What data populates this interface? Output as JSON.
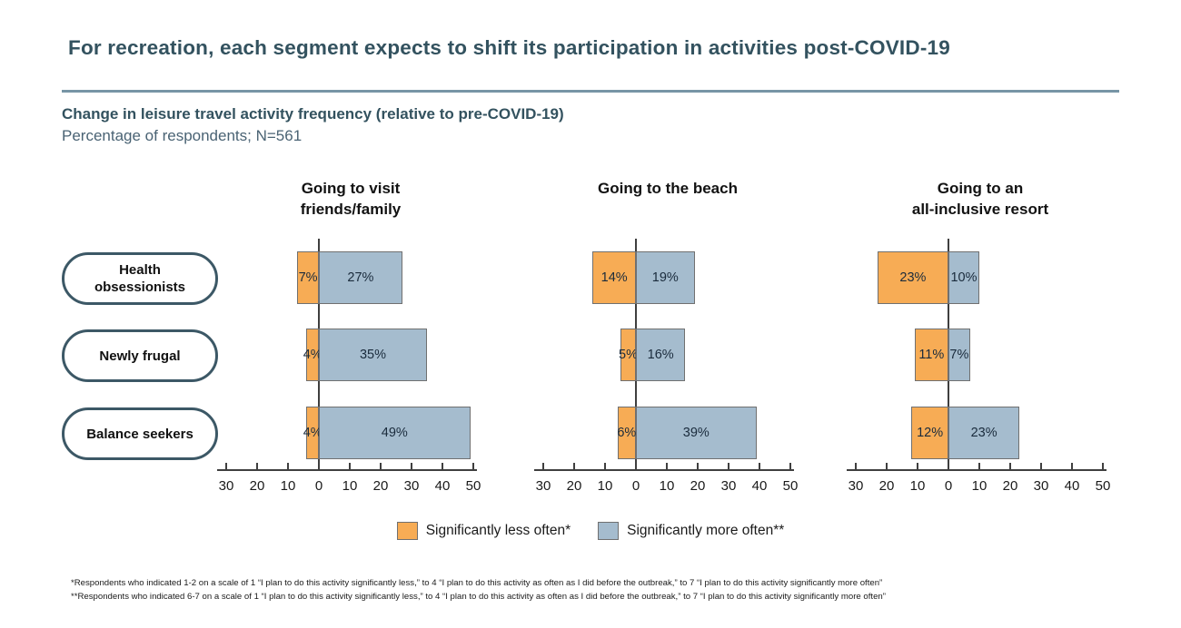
{
  "title": "For recreation, each segment expects to shift its participation in activities post-COVID-19",
  "subtitle": "Change in leisure travel activity frequency (relative to pre-COVID-19)",
  "subtitle2": "Percentage of respondents; N=561",
  "segments": [
    "Health obsessionists",
    "Newly frugal",
    "Balance seekers"
  ],
  "chart_data": {
    "type": "bar",
    "variant": "diverging-horizontal",
    "categories": [
      "Health obsessionists",
      "Newly frugal",
      "Balance seekers"
    ],
    "axis": {
      "tick_values": [
        -30,
        -20,
        -10,
        0,
        10,
        20,
        30,
        40,
        50
      ],
      "tick_labels": [
        "30",
        "20",
        "10",
        "0",
        "10",
        "20",
        "30",
        "40",
        "50"
      ],
      "xlim": [
        -33,
        51
      ],
      "grid": false
    },
    "series_meta": {
      "less": {
        "name": "Significantly less often*",
        "color": "#F7AC55",
        "direction": "left"
      },
      "more": {
        "name": "Significantly more often**",
        "color": "#A5BCCE",
        "direction": "right"
      }
    },
    "panels": [
      {
        "title_lines": [
          "Going to visit",
          "friends/family"
        ],
        "less_values": [
          7,
          4,
          4
        ],
        "more_values": [
          27,
          35,
          49
        ],
        "less_labels": [
          "7%",
          "4%",
          "4%"
        ],
        "more_labels": [
          "27%",
          "35%",
          "49%"
        ]
      },
      {
        "title_lines": [
          "Going to the beach"
        ],
        "less_values": [
          14,
          5,
          6
        ],
        "more_values": [
          19,
          16,
          39
        ],
        "less_labels": [
          "14%",
          "5%",
          "6%"
        ],
        "more_labels": [
          "19%",
          "16%",
          "39%"
        ]
      },
      {
        "title_lines": [
          "Going to an",
          "all-inclusive resort"
        ],
        "less_values": [
          23,
          11,
          12
        ],
        "more_values": [
          10,
          7,
          23
        ],
        "less_labels": [
          "23%",
          "11%",
          "12%"
        ],
        "more_labels": [
          "10%",
          "7%",
          "23%"
        ]
      }
    ],
    "legend_position": "bottom-center"
  },
  "legend": [
    {
      "label": "Significantly less often*",
      "color": "#F7AC55"
    },
    {
      "label": "Significantly more often**",
      "color": "#A5BCCE"
    }
  ],
  "footnotes": [
    "*Respondents who indicated 1-2 on a scale of 1 “I plan to do this activity significantly less,” to 4 “I plan to do this activity as often as I did before the outbreak,” to 7 “I plan to do this activity significantly more often”",
    "**Respondents who indicated 6-7 on a scale of 1 “I plan to do this activity significantly less,” to 4 “I plan to do this activity as often as I did before the outbreak,” to 7 “I plan to do this activity significantly more often”"
  ]
}
